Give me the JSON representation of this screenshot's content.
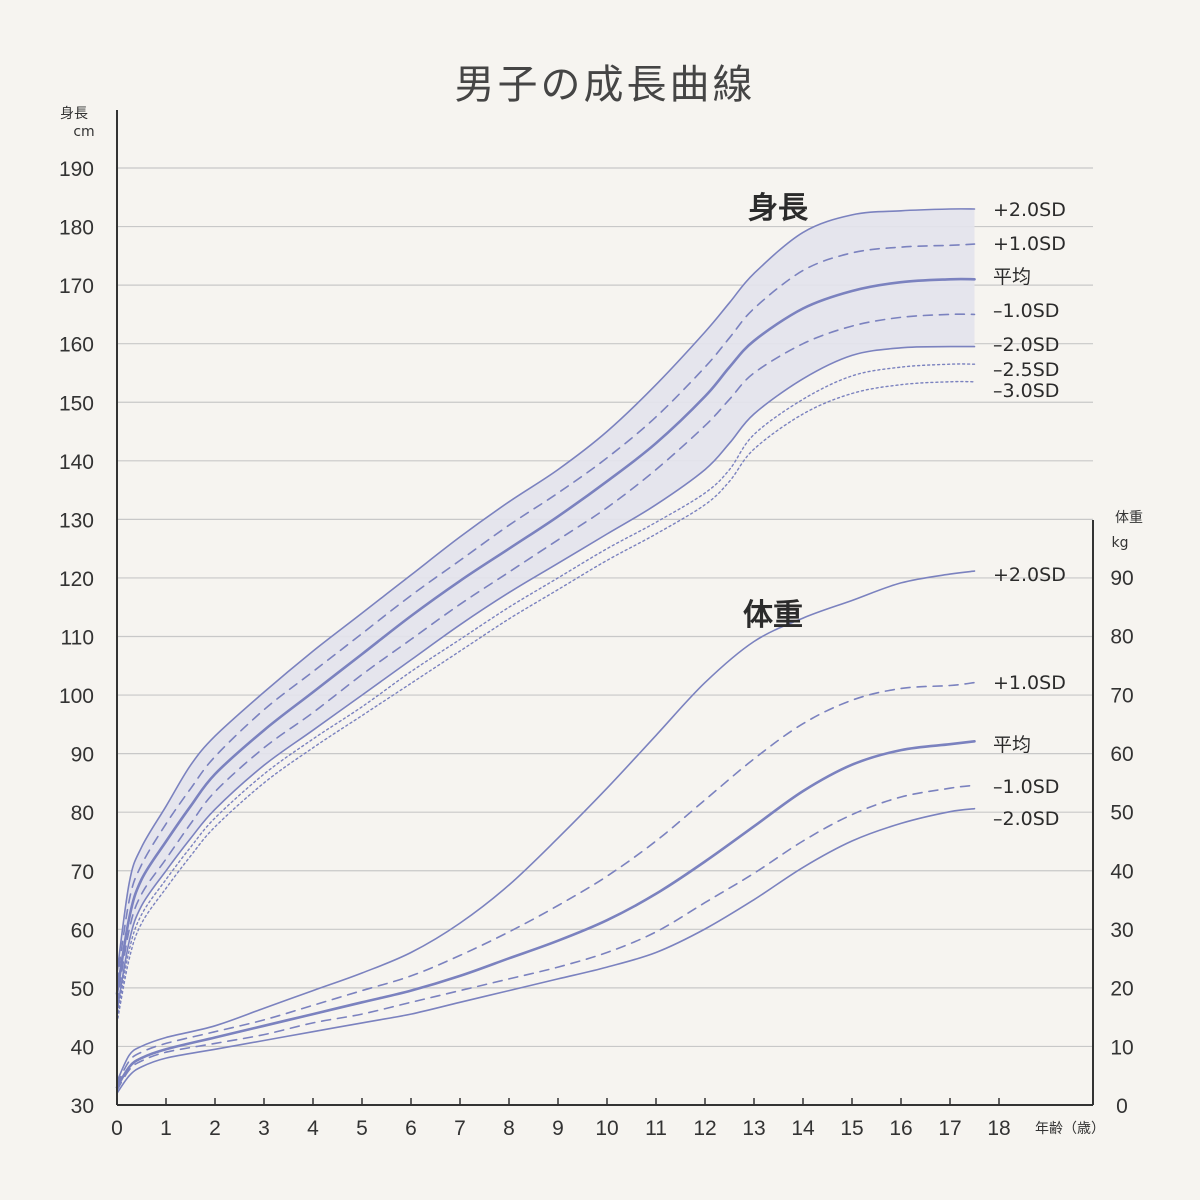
{
  "title": "男子の成長曲線",
  "x_axis": {
    "label": "年齢（歳）",
    "ticks": [
      "0",
      "1",
      "2",
      "3",
      "4",
      "5",
      "6",
      "7",
      "8",
      "9",
      "10",
      "11",
      "12",
      "13",
      "14",
      "15",
      "16",
      "17",
      "18"
    ]
  },
  "y_left": {
    "label_top": "身長",
    "label_unit": "cm",
    "ticks": [
      "30",
      "40",
      "50",
      "60",
      "70",
      "80",
      "90",
      "100",
      "110",
      "120",
      "130",
      "140",
      "150",
      "160",
      "170",
      "180",
      "190"
    ]
  },
  "y_right": {
    "label_top": "体重",
    "label_unit": "kg",
    "ticks": [
      "0",
      "10",
      "20",
      "30",
      "40",
      "50",
      "60",
      "70",
      "80",
      "90"
    ]
  },
  "sections": {
    "height": "身長",
    "weight": "体重"
  },
  "colors": {
    "background": "#f6f4f0",
    "line": "#7b82bf",
    "band": "#e3e3ec",
    "grid": "#c8c8c8",
    "axis": "#333333"
  },
  "chart_data": [
    {
      "type": "line",
      "title": "身長",
      "xlabel": "年齢（歳）",
      "ylabel": "身長 cm",
      "xlim": [
        0,
        18
      ],
      "ylim": [
        30,
        190
      ],
      "grid": true,
      "shaded_band": [
        "+2.0SD",
        "-2.0SD"
      ],
      "x": [
        0,
        0.25,
        0.5,
        1,
        1.5,
        2,
        3,
        4,
        5,
        6,
        7,
        8,
        9,
        10,
        11,
        12,
        12.5,
        13,
        14,
        15,
        16,
        17,
        17.5
      ],
      "series": [
        {
          "name": "+2.0SD",
          "label": "+2.0SD",
          "style": "solid",
          "values": [
            52.5,
            68,
            74,
            81,
            88,
            93,
            100.5,
            107.5,
            114,
            120.5,
            127,
            133,
            138.5,
            145,
            153,
            162,
            167,
            172,
            179,
            182,
            182.7,
            183,
            183
          ]
        },
        {
          "name": "+1.0SD",
          "label": "+1.0SD",
          "style": "dashed",
          "values": [
            51,
            65,
            71,
            78,
            84,
            89.5,
            97.5,
            104,
            110.5,
            117,
            123,
            129,
            134.5,
            140.5,
            147.5,
            156,
            161,
            166,
            172.5,
            175.5,
            176.5,
            176.8,
            177
          ]
        },
        {
          "name": "平均",
          "label": "平均",
          "style": "solid-bold",
          "values": [
            49,
            62,
            68.5,
            75,
            81,
            86.5,
            94,
            100.5,
            107,
            113.5,
            119.5,
            125,
            130.5,
            136.5,
            143,
            151,
            156,
            160.5,
            166,
            169,
            170.5,
            171,
            171
          ]
        },
        {
          "name": "-1.0SD",
          "label": "–1.0SD",
          "style": "dashed",
          "values": [
            47.5,
            60,
            66,
            72,
            78,
            83.5,
            91,
            97,
            103.5,
            109.5,
            115.5,
            121,
            126.5,
            132,
            138.5,
            146,
            150.5,
            155,
            160,
            163,
            164.5,
            165,
            165
          ]
        },
        {
          "name": "-2.0SD",
          "label": "–2.0SD",
          "style": "solid",
          "values": [
            46,
            58,
            64,
            70,
            75.5,
            80.5,
            88,
            94,
            100,
            106,
            112,
            117.5,
            122.5,
            127.5,
            132.5,
            138.5,
            143,
            148,
            154,
            158,
            159.3,
            159.5,
            159.5
          ]
        },
        {
          "name": "-2.5SD",
          "label": "–2.5SD",
          "style": "dotted",
          "values": [
            45,
            56.5,
            62.5,
            68.5,
            74,
            79,
            86.5,
            92.5,
            98,
            104,
            109.5,
            115,
            120,
            125,
            129.5,
            134.5,
            138.5,
            144.5,
            150.5,
            154.5,
            156,
            156.5,
            156.5
          ]
        },
        {
          "name": "-3.0SD",
          "label": "–3.0SD",
          "style": "dotted",
          "values": [
            44,
            55,
            61,
            67,
            72.5,
            77.5,
            85,
            91,
            96.5,
            102,
            107.5,
            113,
            118,
            123,
            127.5,
            132.5,
            136.5,
            142,
            148,
            151.5,
            153,
            153.5,
            153.5
          ]
        }
      ]
    },
    {
      "type": "line",
      "title": "体重",
      "xlabel": "年齢（歳）",
      "ylabel": "体重 kg",
      "xlim": [
        0,
        18
      ],
      "ylim": [
        0,
        90
      ],
      "grid": true,
      "x": [
        0,
        0.25,
        0.5,
        1,
        2,
        3,
        4,
        5,
        6,
        7,
        8,
        9,
        10,
        11,
        12,
        13,
        14,
        15,
        16,
        17,
        17.5
      ],
      "series": [
        {
          "name": "+2.0SD",
          "label": "+2.0SD",
          "style": "solid",
          "values": [
            4,
            8.5,
            10,
            11.5,
            13.5,
            16.5,
            19.5,
            22.5,
            26,
            31,
            37.5,
            45.5,
            54,
            63,
            72,
            79,
            83,
            86,
            89,
            90.5,
            91
          ]
        },
        {
          "name": "+1.0SD",
          "label": "+1.0SD",
          "style": "dashed",
          "values": [
            3.5,
            7.5,
            9,
            10.5,
            12.5,
            14.5,
            17,
            19.5,
            22,
            25.5,
            29.5,
            34,
            39,
            45,
            52,
            59,
            65,
            69,
            71,
            71.5,
            72
          ]
        },
        {
          "name": "平均",
          "label": "平均",
          "style": "solid-bold",
          "values": [
            3,
            6.5,
            8,
            9.5,
            11.5,
            13.5,
            15.5,
            17.5,
            19.5,
            22,
            25,
            28,
            31.5,
            36,
            41.5,
            47.5,
            53.5,
            58,
            60.5,
            61.5,
            62
          ]
        },
        {
          "name": "-1.0SD",
          "label": "–1.0SD",
          "style": "dashed",
          "values": [
            2.5,
            6,
            7.5,
            9,
            10.5,
            12,
            14,
            15.5,
            17.5,
            19.5,
            21.5,
            23.5,
            26,
            29.5,
            34.5,
            39.5,
            45,
            49.5,
            52.5,
            54,
            54.5
          ]
        },
        {
          "name": "-2.0SD",
          "label": "–2.0SD",
          "style": "solid",
          "values": [
            2,
            5,
            6.5,
            8,
            9.5,
            11,
            12.5,
            14,
            15.5,
            17.5,
            19.5,
            21.5,
            23.5,
            26,
            30,
            35,
            40.5,
            45,
            48,
            50,
            50.5
          ]
        }
      ]
    }
  ]
}
